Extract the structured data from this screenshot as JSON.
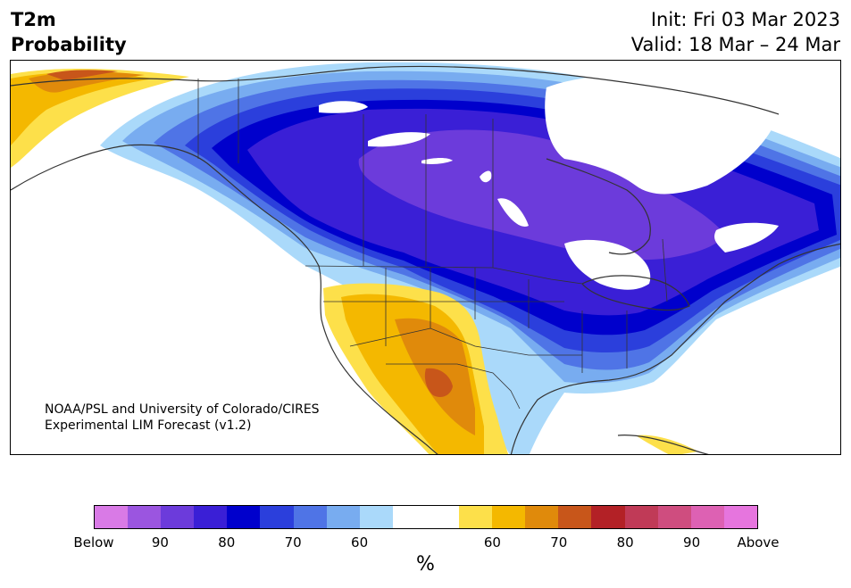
{
  "header": {
    "title_line1": "T2m",
    "title_line2": "Probability",
    "init": "Init: Fri 03 Mar 2023",
    "valid": "Valid: 18 Mar – 24 Mar"
  },
  "map": {
    "credit_line1": "NOAA/PSL and University of Colorado/CIRES",
    "credit_line2": "Experimental LIM Forecast (v1.2)"
  },
  "colorbar": {
    "colors": [
      "#d97ae6",
      "#9b55e0",
      "#6c3bdb",
      "#3a1fd6",
      "#0000cc",
      "#2b3fdc",
      "#4f74e6",
      "#78acf0",
      "#aad9fa",
      "#ffffff",
      "#ffffff",
      "#fde04a",
      "#f4b800",
      "#e08a0b",
      "#c8561a",
      "#b32126",
      "#c03a57",
      "#cf4d7f",
      "#dd61b3",
      "#e675de"
    ],
    "tick_labels": [
      "Below",
      "90",
      "80",
      "70",
      "60",
      "60",
      "70",
      "80",
      "90",
      "Above"
    ],
    "unit": "%"
  }
}
